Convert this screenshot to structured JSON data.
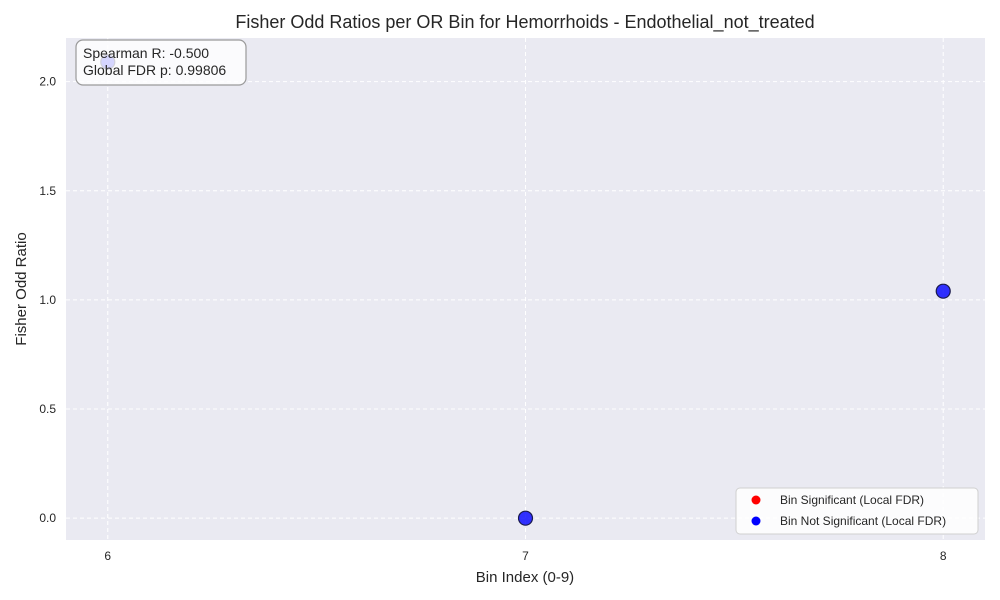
{
  "chart_data": {
    "type": "scatter",
    "title": "Fisher Odd Ratios per OR Bin for Hemorrhoids - Endothelial_not_treated",
    "xlabel": "Bin Index (0-9)",
    "ylabel": "Fisher Odd Ratio",
    "xlim": [
      5.9,
      8.1
    ],
    "ylim": [
      -0.1,
      2.2
    ],
    "x_ticks": [
      6,
      7,
      8
    ],
    "y_ticks": [
      0.0,
      0.5,
      1.0,
      1.5,
      2.0
    ],
    "grid": true,
    "series": [
      {
        "name": "Bin Significant (Local FDR)",
        "color": "#ff0000",
        "points": []
      },
      {
        "name": "Bin Not Significant (Local FDR)",
        "color": "#0000ff",
        "points": [
          {
            "x": 6,
            "y": 2.09
          },
          {
            "x": 7,
            "y": 0.0
          },
          {
            "x": 8,
            "y": 1.04
          }
        ]
      }
    ],
    "annotation": {
      "lines": [
        "Spearman R: -0.500",
        "Global FDR p: 0.99806"
      ]
    },
    "legend_position": "lower-right",
    "colors": {
      "plot_bg": "#eaeaf2",
      "grid": "#ffffff",
      "marker_edge": "#1a1a4d"
    }
  }
}
